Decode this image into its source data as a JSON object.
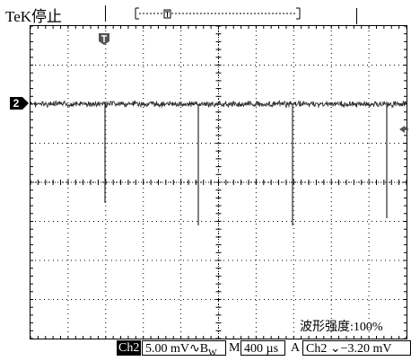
{
  "header": {
    "brand": "TeK",
    "run_state": "停止"
  },
  "channel": {
    "marker": "2"
  },
  "overlay": {
    "waveform_intensity": "波形强度:100%"
  },
  "status": {
    "channel": "Ch2",
    "volts_per_div": "5.00 mV",
    "bw_symbol": "∿B",
    "bw_sub": "W",
    "timebase_prefix": "M",
    "timebase": "400 µs",
    "trigger_prefix": "A",
    "trigger_channel": "Ch2",
    "trigger_slope": "⌄",
    "trigger_level": "−3.20 mV"
  },
  "colors": {
    "trace": "#2b2b2b",
    "grid": "#000000"
  }
}
